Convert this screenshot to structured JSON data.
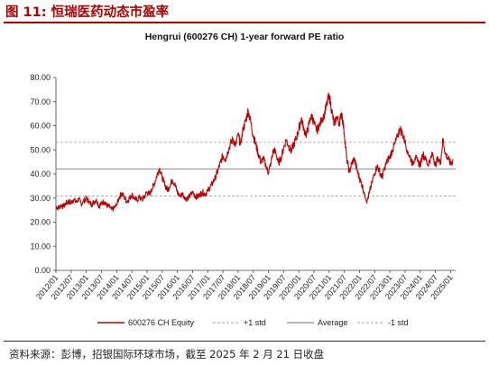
{
  "figure": {
    "title": "图 11: 恒瑞医药动态市盈率",
    "source": "资料来源：彭博，招银国际环球市场，截至 2025 年 2 月 21 日收盘"
  },
  "colors": {
    "title": "#b00000",
    "series": "#c00000",
    "plus_std": "#a6a6a6",
    "average": "#8c8c8c",
    "minus_std": "#a6a6a6"
  },
  "chart_data": {
    "type": "line",
    "title": "Hengrui (600276 CH) 1-year forward PE ratio",
    "xlabel": "",
    "ylabel": "",
    "ylim": [
      0,
      80
    ],
    "y_ticks": [
      "0.00",
      "10.00",
      "20.00",
      "30.00",
      "40.00",
      "50.00",
      "60.00",
      "70.00",
      "80.00"
    ],
    "x_range": [
      "2012/01",
      "2025/03"
    ],
    "x_ticks": [
      "2012/01",
      "2012/07",
      "2013/01",
      "2013/07",
      "2014/01",
      "2014/07",
      "2015/01",
      "2015/07",
      "2016/01",
      "2016/07",
      "2017/01",
      "2017/07",
      "2018/01",
      "2018/07",
      "2019/01",
      "2019/07",
      "2020/01",
      "2020/07",
      "2021/01",
      "2021/07",
      "2022/01",
      "2022/07",
      "2023/01",
      "2023/07",
      "2024/01",
      "2024/07",
      "2025/01"
    ],
    "grid": false,
    "legend_position": "bottom",
    "series": [
      {
        "name": "600276 CH Equity",
        "style": "solid",
        "points": [
          [
            "2012/01",
            26.5
          ],
          [
            "2012/02",
            25.8
          ],
          [
            "2012/03",
            27.2
          ],
          [
            "2012/04",
            26.4
          ],
          [
            "2012/05",
            27.8
          ],
          [
            "2012/06",
            28.6
          ],
          [
            "2012/07",
            28.0
          ],
          [
            "2012/08",
            29.4
          ],
          [
            "2012/09",
            28.2
          ],
          [
            "2012/10",
            29.6
          ],
          [
            "2012/11",
            27.6
          ],
          [
            "2012/12",
            28.8
          ],
          [
            "2013/01",
            29.8
          ],
          [
            "2013/02",
            28.6
          ],
          [
            "2013/03",
            27.2
          ],
          [
            "2013/04",
            28.4
          ],
          [
            "2013/05",
            29.6
          ],
          [
            "2013/06",
            26.6
          ],
          [
            "2013/07",
            27.8
          ],
          [
            "2013/08",
            28.6
          ],
          [
            "2013/09",
            27.0
          ],
          [
            "2013/10",
            26.4
          ],
          [
            "2013/11",
            25.2
          ],
          [
            "2013/12",
            25.8
          ],
          [
            "2014/01",
            27.0
          ],
          [
            "2014/02",
            30.2
          ],
          [
            "2014/03",
            32.0
          ],
          [
            "2014/04",
            30.4
          ],
          [
            "2014/05",
            28.6
          ],
          [
            "2014/06",
            29.8
          ],
          [
            "2014/07",
            31.4
          ],
          [
            "2014/08",
            30.2
          ],
          [
            "2014/09",
            29.0
          ],
          [
            "2014/10",
            30.4
          ],
          [
            "2014/11",
            29.2
          ],
          [
            "2014/12",
            30.6
          ],
          [
            "2015/01",
            32.6
          ],
          [
            "2015/02",
            31.4
          ],
          [
            "2015/03",
            33.8
          ],
          [
            "2015/04",
            36.2
          ],
          [
            "2015/05",
            39.8
          ],
          [
            "2015/06",
            42.4
          ],
          [
            "2015/07",
            38.4
          ],
          [
            "2015/08",
            35.6
          ],
          [
            "2015/09",
            33.4
          ],
          [
            "2015/10",
            34.8
          ],
          [
            "2015/11",
            37.6
          ],
          [
            "2015/12",
            35.8
          ],
          [
            "2016/01",
            32.4
          ],
          [
            "2016/02",
            30.6
          ],
          [
            "2016/03",
            31.8
          ],
          [
            "2016/04",
            30.4
          ],
          [
            "2016/05",
            29.6
          ],
          [
            "2016/06",
            31.0
          ],
          [
            "2016/07",
            32.2
          ],
          [
            "2016/08",
            31.0
          ],
          [
            "2016/09",
            30.4
          ],
          [
            "2016/10",
            31.6
          ],
          [
            "2016/11",
            32.4
          ],
          [
            "2016/12",
            31.6
          ],
          [
            "2017/01",
            33.2
          ],
          [
            "2017/02",
            34.6
          ],
          [
            "2017/03",
            36.4
          ],
          [
            "2017/04",
            38.6
          ],
          [
            "2017/05",
            41.2
          ],
          [
            "2017/06",
            44.8
          ],
          [
            "2017/07",
            47.6
          ],
          [
            "2017/08",
            46.0
          ],
          [
            "2017/09",
            49.2
          ],
          [
            "2017/10",
            52.6
          ],
          [
            "2017/11",
            54.4
          ],
          [
            "2017/12",
            51.8
          ],
          [
            "2018/01",
            56.2
          ],
          [
            "2018/02",
            52.4
          ],
          [
            "2018/03",
            58.6
          ],
          [
            "2018/04",
            61.8
          ],
          [
            "2018/05",
            66.4
          ],
          [
            "2018/06",
            61.6
          ],
          [
            "2018/07",
            56.0
          ],
          [
            "2018/08",
            52.2
          ],
          [
            "2018/09",
            48.4
          ],
          [
            "2018/10",
            44.8
          ],
          [
            "2018/11",
            46.4
          ],
          [
            "2018/12",
            43.2
          ],
          [
            "2019/01",
            40.4
          ],
          [
            "2019/02",
            44.8
          ],
          [
            "2019/03",
            50.2
          ],
          [
            "2019/04",
            48.6
          ],
          [
            "2019/05",
            44.4
          ],
          [
            "2019/06",
            46.8
          ],
          [
            "2019/07",
            50.6
          ],
          [
            "2019/08",
            54.2
          ],
          [
            "2019/09",
            51.8
          ],
          [
            "2019/10",
            49.4
          ],
          [
            "2019/11",
            52.2
          ],
          [
            "2019/12",
            54.8
          ],
          [
            "2020/01",
            58.4
          ],
          [
            "2020/02",
            63.2
          ],
          [
            "2020/03",
            58.6
          ],
          [
            "2020/04",
            56.2
          ],
          [
            "2020/05",
            60.4
          ],
          [
            "2020/06",
            64.8
          ],
          [
            "2020/07",
            61.2
          ],
          [
            "2020/08",
            57.6
          ],
          [
            "2020/09",
            59.8
          ],
          [
            "2020/10",
            62.2
          ],
          [
            "2020/11",
            64.6
          ],
          [
            "2020/12",
            68.4
          ],
          [
            "2021/01",
            72.8
          ],
          [
            "2021/02",
            66.4
          ],
          [
            "2021/03",
            60.2
          ],
          [
            "2021/04",
            63.6
          ],
          [
            "2021/05",
            61.2
          ],
          [
            "2021/06",
            65.4
          ],
          [
            "2021/07",
            56.8
          ],
          [
            "2021/08",
            46.2
          ],
          [
            "2021/09",
            40.8
          ],
          [
            "2021/10",
            44.6
          ],
          [
            "2021/11",
            46.2
          ],
          [
            "2021/12",
            41.6
          ],
          [
            "2022/01",
            38.2
          ],
          [
            "2022/02",
            35.4
          ],
          [
            "2022/03",
            31.8
          ],
          [
            "2022/04",
            28.6
          ],
          [
            "2022/05",
            32.6
          ],
          [
            "2022/06",
            36.8
          ],
          [
            "2022/07",
            40.2
          ],
          [
            "2022/08",
            43.6
          ],
          [
            "2022/09",
            40.8
          ],
          [
            "2022/10",
            38.6
          ],
          [
            "2022/11",
            42.8
          ],
          [
            "2022/12",
            45.4
          ],
          [
            "2023/01",
            47.2
          ],
          [
            "2023/02",
            49.8
          ],
          [
            "2023/03",
            52.6
          ],
          [
            "2023/04",
            55.4
          ],
          [
            "2023/05",
            58.8
          ],
          [
            "2023/06",
            56.6
          ],
          [
            "2023/07",
            53.2
          ],
          [
            "2023/08",
            49.6
          ],
          [
            "2023/09",
            47.0
          ],
          [
            "2023/10",
            44.4
          ],
          [
            "2023/11",
            46.8
          ],
          [
            "2023/12",
            45.2
          ],
          [
            "2024/01",
            43.8
          ],
          [
            "2024/02",
            48.2
          ],
          [
            "2024/03",
            46.4
          ],
          [
            "2024/04",
            44.0
          ],
          [
            "2024/05",
            46.2
          ],
          [
            "2024/06",
            48.4
          ],
          [
            "2024/07",
            43.4
          ],
          [
            "2024/08",
            46.8
          ],
          [
            "2024/09",
            44.2
          ],
          [
            "2024/10",
            54.6
          ],
          [
            "2024/11",
            48.2
          ],
          [
            "2024/12",
            46.6
          ],
          [
            "2025/01",
            44.2
          ],
          [
            "2025/02",
            45.6
          ]
        ]
      },
      {
        "name": "+1 std",
        "style": "dashed",
        "value": 53.1
      },
      {
        "name": "Average",
        "style": "solid",
        "value": 42.0
      },
      {
        "name": "-1 std",
        "style": "dashed",
        "value": 30.8
      }
    ]
  }
}
